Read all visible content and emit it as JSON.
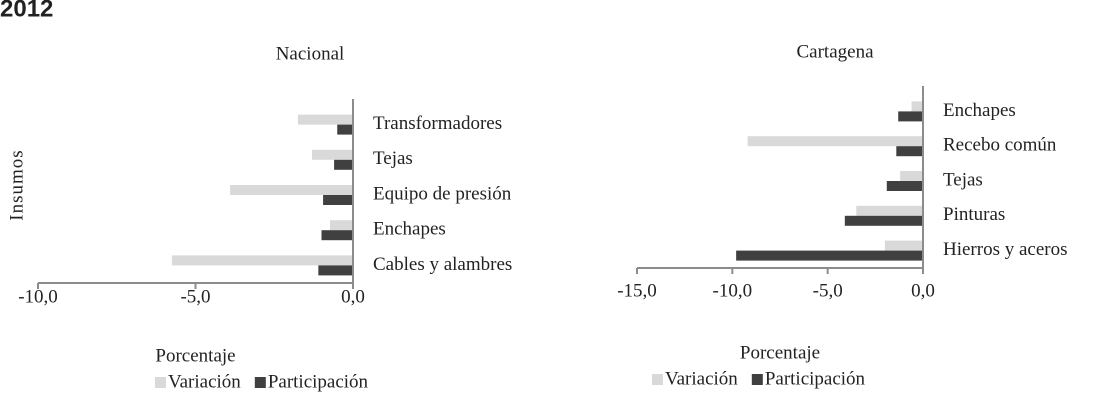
{
  "page_title": "2012",
  "chart_data": [
    {
      "type": "hbar",
      "title": "Nacional",
      "x_label": "Porcentaje",
      "y_label": "Insumos",
      "categories": [
        "Transformadores",
        "Tejas",
        "Equipo de presión",
        "Enchapes",
        "Cables y alambres"
      ],
      "series": [
        {
          "name": "Variación",
          "color": "#d9d9d9",
          "values": [
            -1.75,
            -1.3,
            -3.9,
            -0.73,
            -5.75
          ]
        },
        {
          "name": "Participación",
          "color": "#404040",
          "values": [
            -0.5,
            -0.6,
            -0.95,
            -1.0,
            -1.1
          ]
        }
      ],
      "xlim": [
        -10,
        0
      ],
      "xticks": [
        {
          "value": -10,
          "label": "-10,0"
        },
        {
          "value": -5,
          "label": "-5,0"
        },
        {
          "value": 0,
          "label": "0,0"
        }
      ],
      "legend": "bottom"
    },
    {
      "type": "hbar",
      "title": "Cartagena",
      "x_label": "Porcentaje",
      "categories": [
        "Enchapes",
        "Recebo común",
        "Tejas",
        "Pinturas",
        "Hierros y aceros"
      ],
      "series": [
        {
          "name": "Variación",
          "color": "#d9d9d9",
          "values": [
            -0.6,
            -9.2,
            -1.2,
            -3.5,
            -2.0
          ]
        },
        {
          "name": "Participación",
          "color": "#404040",
          "values": [
            -1.3,
            -1.4,
            -1.9,
            -4.1,
            -9.8
          ]
        }
      ],
      "xlim": [
        -15,
        0
      ],
      "xticks": [
        {
          "value": -15,
          "label": "-15,0"
        },
        {
          "value": -10,
          "label": "-10,0"
        },
        {
          "value": -5,
          "label": "-5,0"
        },
        {
          "value": 0,
          "label": "0,0"
        }
      ],
      "legend": "bottom"
    }
  ]
}
